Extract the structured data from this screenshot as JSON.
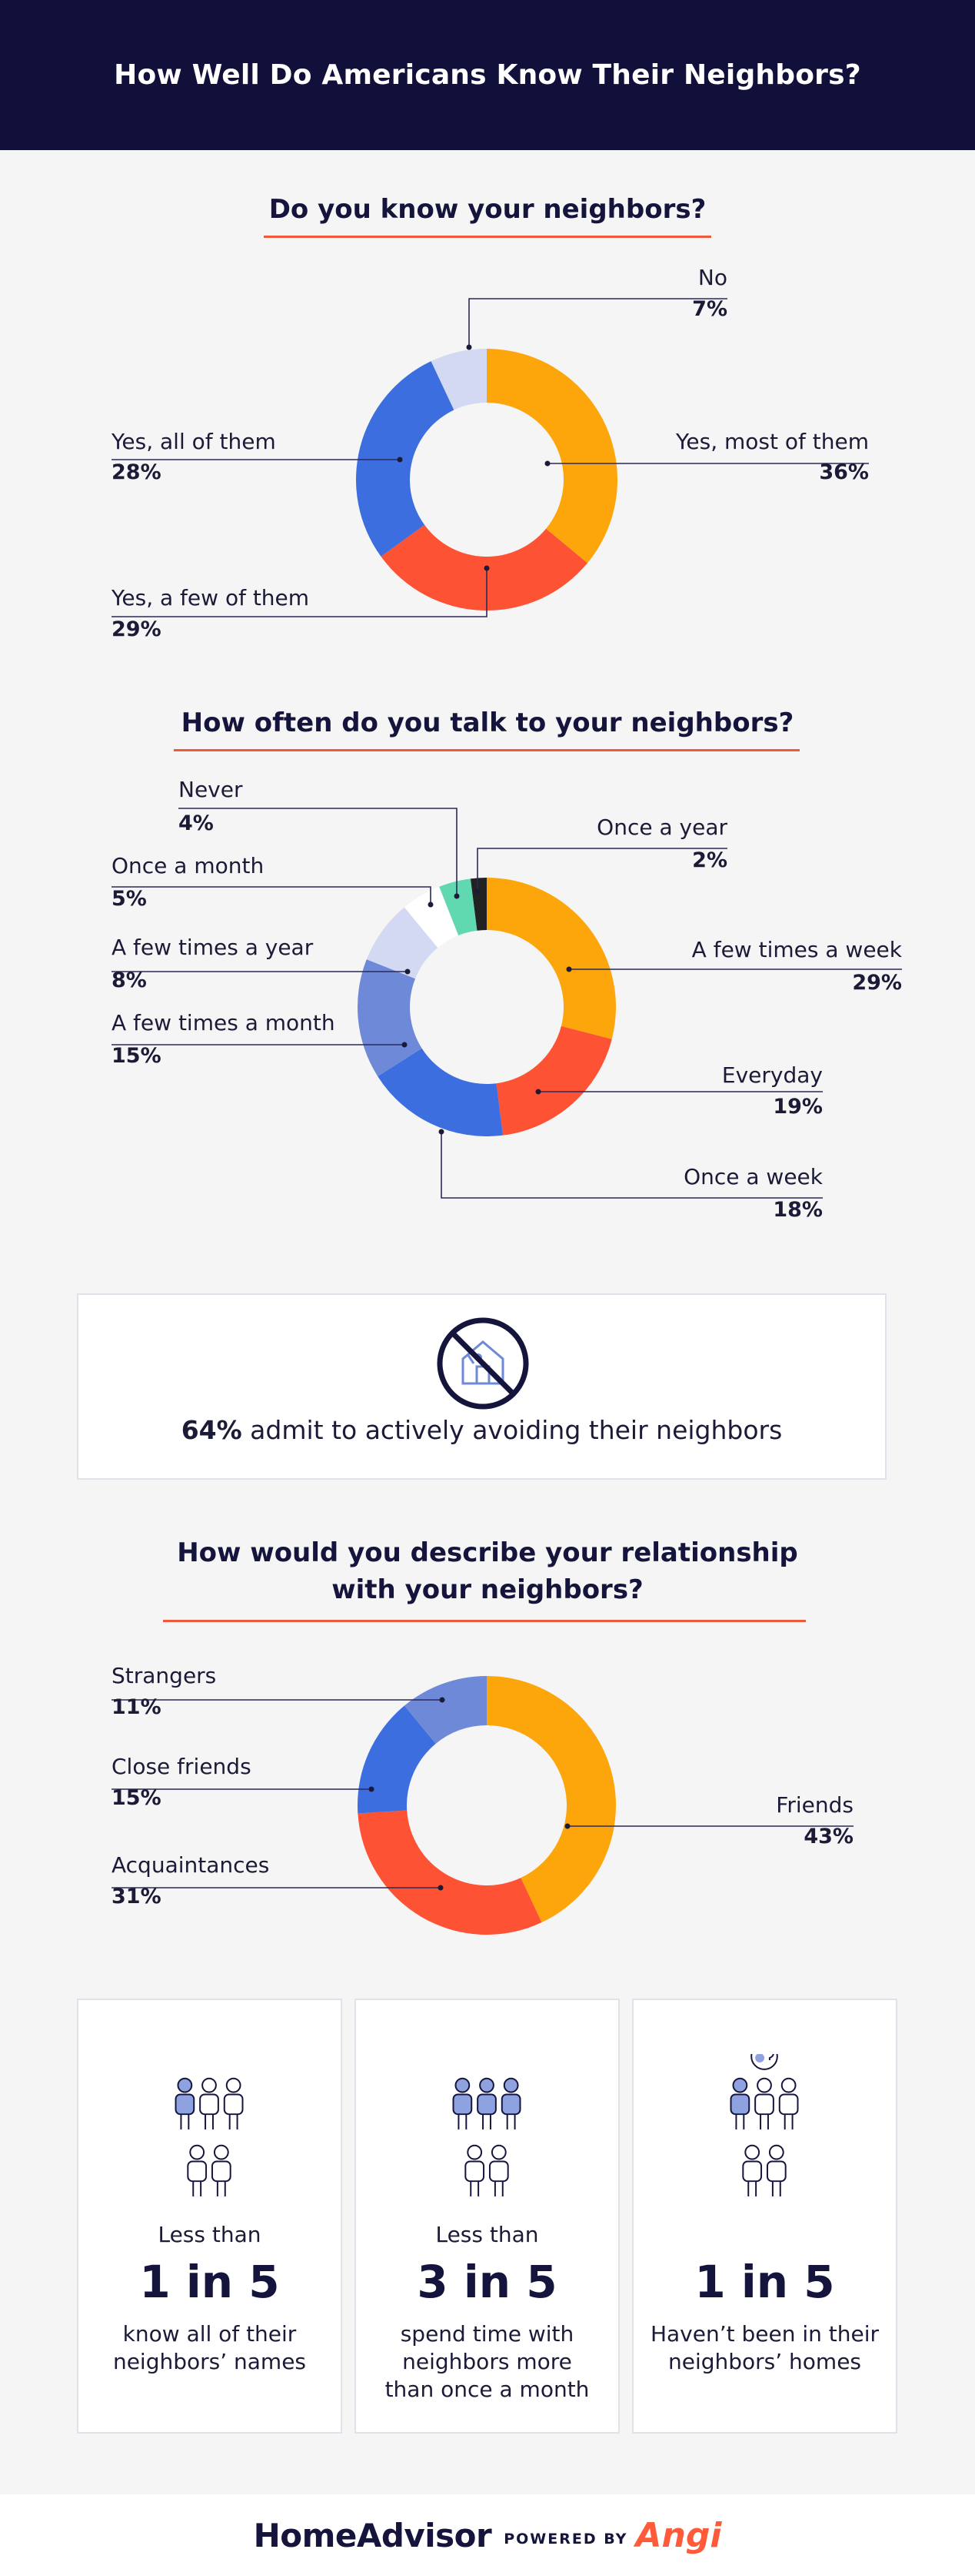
{
  "header": {
    "title": "How Well Do Americans Know Their Neighbors?"
  },
  "colors": {
    "orange": "#fca60b",
    "red": "#fe5234",
    "blue": "#3d6ee0",
    "mid_blue": "#6e89d8",
    "light_blue": "#d3d9f2",
    "mint": "#60d9b0",
    "black": "#222222",
    "navy": "#10103a",
    "accent_line": "#f05a3c"
  },
  "chart_data": [
    {
      "type": "pie",
      "title": "Do you know your neighbors?",
      "labels": [
        "Yes, most of them",
        "Yes, a few of them",
        "Yes, all of them",
        "No"
      ],
      "values": [
        36,
        29,
        28,
        7
      ],
      "value_labels": [
        "36%",
        "29%",
        "28%",
        "7%"
      ],
      "colors": [
        "#fca60b",
        "#fe5234",
        "#3d6ee0",
        "#d3d9f2"
      ],
      "donut": true
    },
    {
      "type": "pie",
      "title": "How often do you talk to your neighbors?",
      "labels": [
        "A few times a week",
        "Everyday",
        "Once a week",
        "A few times a month",
        "A few times a year",
        "Once a month",
        "Never",
        "Once a year"
      ],
      "values": [
        29,
        19,
        18,
        15,
        8,
        5,
        4,
        2
      ],
      "value_labels": [
        "29%",
        "19%",
        "18%",
        "15%",
        "8%",
        "5%",
        "4%",
        "2%"
      ],
      "colors": [
        "#fca60b",
        "#fe5234",
        "#3d6ee0",
        "#6e89d8",
        "#d3d9f2",
        "#ffffff",
        "#60d9b0",
        "#222222"
      ],
      "donut": true
    },
    {
      "type": "pie",
      "title": "How would you describe your relationship with your neighbors?",
      "title_lines": [
        "How would you describe your relationship",
        "with your neighbors?"
      ],
      "labels": [
        "Friends",
        "Acquaintances",
        "Close friends",
        "Strangers"
      ],
      "values": [
        43,
        31,
        15,
        11
      ],
      "value_labels": [
        "43%",
        "31%",
        "15%",
        "11%"
      ],
      "colors": [
        "#fca60b",
        "#fe5234",
        "#3d6ee0",
        "#6e89d8"
      ],
      "donut": true
    }
  ],
  "avoid": {
    "pct": "64%",
    "text": " admit to actively avoiding their neighbors"
  },
  "stats": [
    {
      "pre": "Less than",
      "big": "1 in 5",
      "desc": [
        "know all of their",
        "neighbors’ names"
      ]
    },
    {
      "pre": "Less than",
      "big": "3 in 5",
      "desc": [
        "spend time with",
        "neighbors more",
        "than once a month"
      ]
    },
    {
      "pre": "",
      "big": "1 in 5",
      "desc": [
        "Haven’t been in their",
        "neighbors’ homes"
      ]
    }
  ],
  "footer": {
    "brand": "HomeAdvisor",
    "powered": "POWERED BY",
    "angi": "Angi"
  }
}
